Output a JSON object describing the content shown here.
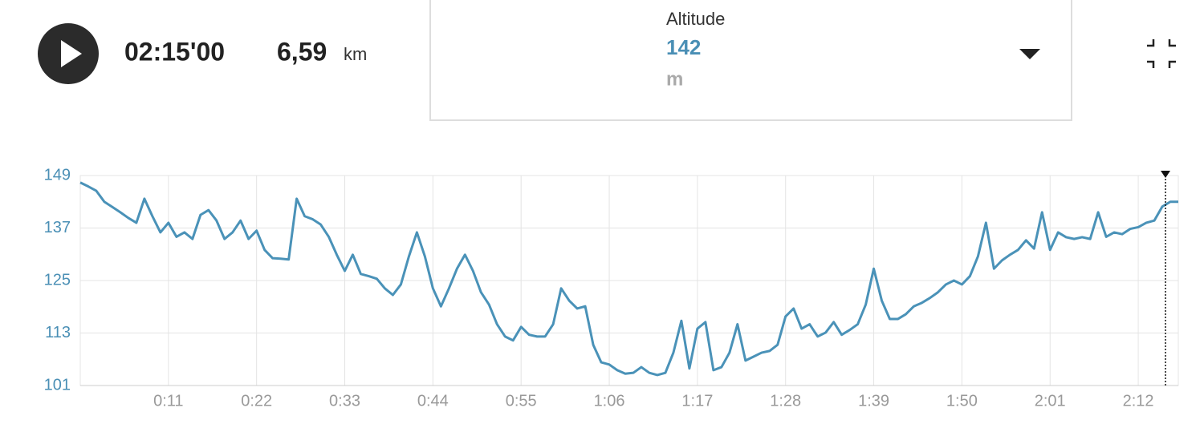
{
  "header": {
    "duration": "02:15'00",
    "distance": "6,59",
    "distance_unit": "km",
    "metric_label": "Altitude",
    "metric_value": "142",
    "metric_unit": "m"
  },
  "chart_data": {
    "type": "line",
    "x": [
      0,
      1,
      2,
      3,
      4,
      5,
      6,
      7,
      8,
      9,
      10,
      11,
      12,
      13,
      14,
      15,
      16,
      17,
      18,
      19,
      20,
      21,
      22,
      23,
      24,
      25,
      26,
      27,
      28,
      29,
      30,
      31,
      32,
      33,
      34,
      35,
      36,
      37,
      38,
      39,
      40,
      41,
      42,
      43,
      44,
      45,
      46,
      47,
      48,
      49,
      50,
      51,
      52,
      53,
      54,
      55,
      56,
      57,
      58,
      59,
      60,
      61,
      62,
      63,
      64,
      65,
      66,
      67,
      68,
      69,
      70,
      71,
      72,
      73,
      74,
      75,
      76,
      77,
      78,
      79,
      80,
      81,
      82,
      83,
      84,
      85,
      86,
      87,
      88,
      89,
      90,
      91,
      92,
      93,
      94,
      95,
      96,
      97,
      98,
      99,
      100,
      101,
      102,
      103,
      104,
      105,
      106,
      107,
      108,
      109,
      110,
      111,
      112,
      113,
      114,
      115,
      116,
      117,
      118,
      119,
      120,
      121,
      122,
      123,
      124,
      125,
      126,
      127,
      128,
      129,
      130,
      131,
      132,
      133,
      134,
      135,
      136,
      137
    ],
    "series": [
      {
        "color": "#4a92b8",
        "values": [
          147.4,
          146.5,
          145.5,
          143,
          141.8,
          140.6,
          139.3,
          138.2,
          143.7,
          139.7,
          136,
          138.2,
          135,
          136,
          134.5,
          140,
          141.1,
          138.7,
          134.5,
          136,
          138.7,
          134.5,
          136.4,
          132,
          130.1,
          130,
          129.8,
          143.7,
          139.7,
          139,
          137.8,
          135,
          130.9,
          127.2,
          130.9,
          126.5,
          126,
          125.4,
          123.2,
          121.7,
          124.1,
          130.5,
          136,
          130.5,
          123.2,
          119.1,
          123.2,
          127.7,
          130.9,
          127.2,
          122.3,
          119.5,
          115,
          112.2,
          111.3,
          114.4,
          112.6,
          112.2,
          112.2,
          115,
          123.2,
          120.4,
          118.6,
          119.1,
          110.3,
          106.3,
          105.8,
          104.5,
          103.7,
          103.9,
          105.2,
          103.9,
          103.4,
          103.9,
          108.5,
          115.8,
          104.9,
          114,
          115.5,
          104.5,
          105.2,
          108.5,
          115,
          106.7,
          107.6,
          108.5,
          108.9,
          110.3,
          116.8,
          118.6,
          114,
          115,
          112.2,
          113.1,
          115.5,
          112.6,
          113.7,
          115,
          119.5,
          127.7,
          120.4,
          116.2,
          116.2,
          117.3,
          119.1,
          119.9,
          121,
          122.3,
          124.1,
          125,
          124.1,
          126,
          130.5,
          138.2,
          127.7,
          129.6,
          130.9,
          132,
          134.2,
          132.3,
          140.6,
          132,
          136,
          134.9,
          134.5,
          134.9,
          134.5,
          140.6,
          135,
          136,
          135.6,
          136.8,
          137.2,
          138.2,
          138.7,
          141.9,
          143,
          143
        ]
      }
    ],
    "xlim": [
      0,
      137
    ],
    "xticks": [
      {
        "value": 11,
        "label": "0:11"
      },
      {
        "value": 22,
        "label": "0:22"
      },
      {
        "value": 33,
        "label": "0:33"
      },
      {
        "value": 44,
        "label": "0:44"
      },
      {
        "value": 55,
        "label": "0:55"
      },
      {
        "value": 66,
        "label": "1:06"
      },
      {
        "value": 77,
        "label": "1:17"
      },
      {
        "value": 88,
        "label": "1:28"
      },
      {
        "value": 99,
        "label": "1:39"
      },
      {
        "value": 110,
        "label": "1:50"
      },
      {
        "value": 121,
        "label": "2:01"
      },
      {
        "value": 132,
        "label": "2:12"
      }
    ],
    "ylim": [
      101,
      149
    ],
    "yticks": [
      101,
      113,
      125,
      137,
      149
    ],
    "grid": true,
    "cursor_x": 135.4
  }
}
